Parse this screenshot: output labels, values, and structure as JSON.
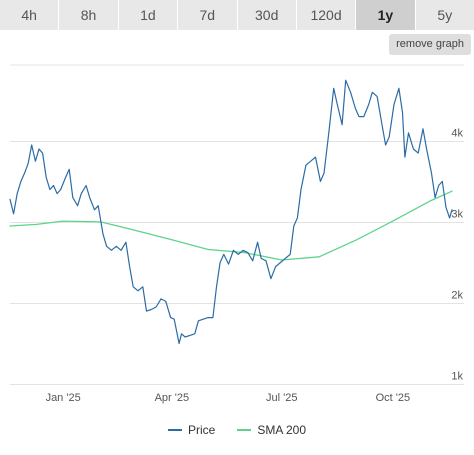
{
  "range_tabs": [
    {
      "label": "4h",
      "active": false
    },
    {
      "label": "8h",
      "active": false
    },
    {
      "label": "1d",
      "active": false
    },
    {
      "label": "7d",
      "active": false
    },
    {
      "label": "30d",
      "active": false
    },
    {
      "label": "120d",
      "active": false
    },
    {
      "label": "1y",
      "active": true
    },
    {
      "label": "5y",
      "active": false
    }
  ],
  "remove_graph_label": "remove graph",
  "legend": {
    "price_label": "Price",
    "sma_label": "SMA 200"
  },
  "colors": {
    "price": "#2b6ca6",
    "sma": "#5fd38a",
    "grid": "#e3e3e3"
  },
  "chart_data": {
    "type": "line",
    "title": "",
    "xlabel": "",
    "ylabel": "",
    "grid": true,
    "legend_position": "bottom",
    "x_ticks": [
      "Jan '25",
      "Apr '25",
      "Jul '25",
      "Oct '25"
    ],
    "y_ticks": [
      "1k",
      "2k",
      "3k",
      "4k"
    ],
    "x_range": [
      "2024-11-18",
      "2025-11-19"
    ],
    "y_range": [
      1000,
      4900
    ],
    "series": [
      {
        "name": "Price",
        "color": "#2b6ca6",
        "points": [
          [
            "2024-11-18",
            3280
          ],
          [
            "2024-11-21",
            3100
          ],
          [
            "2024-11-24",
            3350
          ],
          [
            "2024-11-27",
            3500
          ],
          [
            "2024-11-30",
            3600
          ],
          [
            "2024-12-03",
            3720
          ],
          [
            "2024-12-06",
            3950
          ],
          [
            "2024-12-09",
            3750
          ],
          [
            "2024-12-12",
            3900
          ],
          [
            "2024-12-15",
            3850
          ],
          [
            "2024-12-18",
            3550
          ],
          [
            "2024-12-21",
            3400
          ],
          [
            "2024-12-24",
            3450
          ],
          [
            "2024-12-27",
            3350
          ],
          [
            "2024-12-30",
            3400
          ],
          [
            "2025-01-03",
            3550
          ],
          [
            "2025-01-06",
            3650
          ],
          [
            "2025-01-09",
            3300
          ],
          [
            "2025-01-13",
            3200
          ],
          [
            "2025-01-16",
            3350
          ],
          [
            "2025-01-20",
            3450
          ],
          [
            "2025-01-23",
            3300
          ],
          [
            "2025-01-27",
            3150
          ],
          [
            "2025-01-30",
            3200
          ],
          [
            "2025-02-03",
            2850
          ],
          [
            "2025-02-06",
            2700
          ],
          [
            "2025-02-10",
            2650
          ],
          [
            "2025-02-14",
            2700
          ],
          [
            "2025-02-18",
            2650
          ],
          [
            "2025-02-22",
            2750
          ],
          [
            "2025-02-25",
            2450
          ],
          [
            "2025-02-28",
            2200
          ],
          [
            "2025-03-04",
            2150
          ],
          [
            "2025-03-08",
            2200
          ],
          [
            "2025-03-11",
            1900
          ],
          [
            "2025-03-15",
            1920
          ],
          [
            "2025-03-19",
            1950
          ],
          [
            "2025-03-23",
            2050
          ],
          [
            "2025-03-27",
            2020
          ],
          [
            "2025-03-31",
            1820
          ],
          [
            "2025-04-03",
            1800
          ],
          [
            "2025-04-07",
            1500
          ],
          [
            "2025-04-09",
            1620
          ],
          [
            "2025-04-12",
            1580
          ],
          [
            "2025-04-16",
            1600
          ],
          [
            "2025-04-20",
            1620
          ],
          [
            "2025-04-23",
            1780
          ],
          [
            "2025-04-27",
            1800
          ],
          [
            "2025-05-01",
            1820
          ],
          [
            "2025-05-05",
            1820
          ],
          [
            "2025-05-08",
            2200
          ],
          [
            "2025-05-11",
            2500
          ],
          [
            "2025-05-14",
            2600
          ],
          [
            "2025-05-18",
            2480
          ],
          [
            "2025-05-22",
            2650
          ],
          [
            "2025-05-26",
            2600
          ],
          [
            "2025-05-30",
            2650
          ],
          [
            "2025-06-03",
            2620
          ],
          [
            "2025-06-07",
            2520
          ],
          [
            "2025-06-11",
            2750
          ],
          [
            "2025-06-14",
            2550
          ],
          [
            "2025-06-18",
            2520
          ],
          [
            "2025-06-22",
            2300
          ],
          [
            "2025-06-26",
            2450
          ],
          [
            "2025-06-30",
            2500
          ],
          [
            "2025-07-04",
            2550
          ],
          [
            "2025-07-08",
            2600
          ],
          [
            "2025-07-11",
            2950
          ],
          [
            "2025-07-14",
            3050
          ],
          [
            "2025-07-17",
            3400
          ],
          [
            "2025-07-21",
            3700
          ],
          [
            "2025-07-25",
            3750
          ],
          [
            "2025-07-29",
            3800
          ],
          [
            "2025-08-02",
            3500
          ],
          [
            "2025-08-05",
            3600
          ],
          [
            "2025-08-09",
            4100
          ],
          [
            "2025-08-13",
            4650
          ],
          [
            "2025-08-16",
            4450
          ],
          [
            "2025-08-20",
            4200
          ],
          [
            "2025-08-23",
            4750
          ],
          [
            "2025-08-27",
            4600
          ],
          [
            "2025-08-31",
            4400
          ],
          [
            "2025-09-03",
            4300
          ],
          [
            "2025-09-07",
            4300
          ],
          [
            "2025-09-11",
            4450
          ],
          [
            "2025-09-14",
            4600
          ],
          [
            "2025-09-18",
            4550
          ],
          [
            "2025-09-22",
            4200
          ],
          [
            "2025-09-25",
            3950
          ],
          [
            "2025-09-28",
            4050
          ],
          [
            "2025-10-02",
            4450
          ],
          [
            "2025-10-06",
            4650
          ],
          [
            "2025-10-09",
            4350
          ],
          [
            "2025-10-11",
            3800
          ],
          [
            "2025-10-14",
            4100
          ],
          [
            "2025-10-18",
            3900
          ],
          [
            "2025-10-22",
            3850
          ],
          [
            "2025-10-26",
            4150
          ],
          [
            "2025-10-29",
            3900
          ],
          [
            "2025-11-02",
            3600
          ],
          [
            "2025-11-05",
            3300
          ],
          [
            "2025-11-08",
            3450
          ],
          [
            "2025-11-11",
            3500
          ],
          [
            "2025-11-14",
            3180
          ],
          [
            "2025-11-17",
            3050
          ],
          [
            "2025-11-19",
            3150
          ]
        ]
      },
      {
        "name": "SMA 200",
        "color": "#5fd38a",
        "points": [
          [
            "2024-11-18",
            2950
          ],
          [
            "2024-12-10",
            2970
          ],
          [
            "2025-01-01",
            3010
          ],
          [
            "2025-02-01",
            3000
          ],
          [
            "2025-03-01",
            2900
          ],
          [
            "2025-04-01",
            2780
          ],
          [
            "2025-05-01",
            2660
          ],
          [
            "2025-06-01",
            2620
          ],
          [
            "2025-07-01",
            2530
          ],
          [
            "2025-08-01",
            2570
          ],
          [
            "2025-09-01",
            2780
          ],
          [
            "2025-10-01",
            3010
          ],
          [
            "2025-11-01",
            3260
          ],
          [
            "2025-11-19",
            3380
          ]
        ]
      }
    ]
  }
}
